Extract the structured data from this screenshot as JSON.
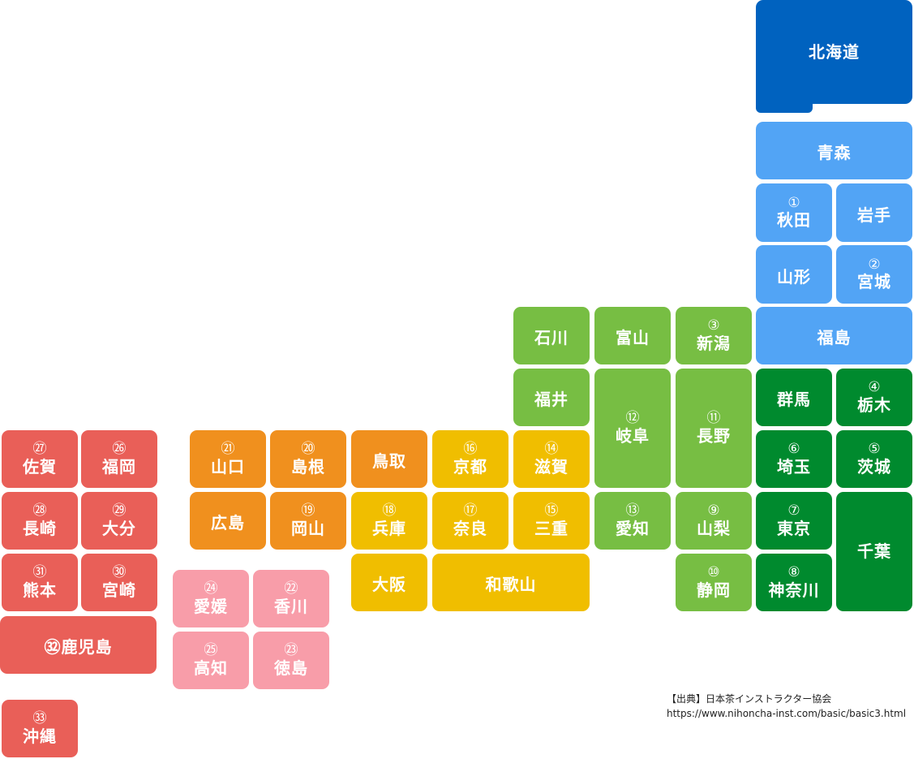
{
  "colors": {
    "hokkaido": "#0062BF",
    "tohoku": "#52A4F5",
    "kanto": "#008A2E",
    "chubu": "#77BE43",
    "kinki": "#F0BE00",
    "chugoku": "#F0901E",
    "shikoku": "#F89DA9",
    "kyushu": "#E95F58"
  },
  "prefectures": [
    {
      "id": "hokkaido",
      "name": "北海道",
      "num": "",
      "region": "hokkaido"
    },
    {
      "id": "aomori",
      "name": "青森",
      "num": "",
      "region": "tohoku"
    },
    {
      "id": "akita",
      "name": "秋田",
      "num": "①",
      "region": "tohoku"
    },
    {
      "id": "iwate",
      "name": "岩手",
      "num": "",
      "region": "tohoku"
    },
    {
      "id": "yamagata",
      "name": "山形",
      "num": "",
      "region": "tohoku"
    },
    {
      "id": "miyagi",
      "name": "宮城",
      "num": "②",
      "region": "tohoku"
    },
    {
      "id": "fukushima",
      "name": "福島",
      "num": "",
      "region": "tohoku"
    },
    {
      "id": "ishikawa",
      "name": "石川",
      "num": "",
      "region": "chubu"
    },
    {
      "id": "toyama",
      "name": "富山",
      "num": "",
      "region": "chubu"
    },
    {
      "id": "niigata",
      "name": "新潟",
      "num": "③",
      "region": "chubu"
    },
    {
      "id": "fukui",
      "name": "福井",
      "num": "",
      "region": "chubu"
    },
    {
      "id": "gifu",
      "name": "岐阜",
      "num": "⑫",
      "region": "chubu"
    },
    {
      "id": "nagano",
      "name": "長野",
      "num": "⑪",
      "region": "chubu"
    },
    {
      "id": "gunma",
      "name": "群馬",
      "num": "",
      "region": "kanto"
    },
    {
      "id": "tochigi",
      "name": "栃木",
      "num": "④",
      "region": "kanto"
    },
    {
      "id": "saitama",
      "name": "埼玉",
      "num": "⑥",
      "region": "kanto"
    },
    {
      "id": "ibaraki",
      "name": "茨城",
      "num": "⑤",
      "region": "kanto"
    },
    {
      "id": "tokyo",
      "name": "東京",
      "num": "⑦",
      "region": "kanto"
    },
    {
      "id": "chiba",
      "name": "千葉",
      "num": "",
      "region": "kanto"
    },
    {
      "id": "kanagawa",
      "name": "神奈川",
      "num": "⑧",
      "region": "kanto"
    },
    {
      "id": "aichi",
      "name": "愛知",
      "num": "⑬",
      "region": "chubu"
    },
    {
      "id": "yamanashi",
      "name": "山梨",
      "num": "⑨",
      "region": "chubu"
    },
    {
      "id": "shizuoka",
      "name": "静岡",
      "num": "⑩",
      "region": "chubu"
    },
    {
      "id": "shiga",
      "name": "滋賀",
      "num": "⑭",
      "region": "kinki"
    },
    {
      "id": "kyoto",
      "name": "京都",
      "num": "⑯",
      "region": "kinki"
    },
    {
      "id": "mie",
      "name": "三重",
      "num": "⑮",
      "region": "kinki"
    },
    {
      "id": "nara",
      "name": "奈良",
      "num": "⑰",
      "region": "kinki"
    },
    {
      "id": "hyogo",
      "name": "兵庫",
      "num": "⑱",
      "region": "kinki"
    },
    {
      "id": "osaka",
      "name": "大阪",
      "num": "",
      "region": "kinki"
    },
    {
      "id": "wakayama",
      "name": "和歌山",
      "num": "",
      "region": "kinki"
    },
    {
      "id": "tottori",
      "name": "鳥取",
      "num": "",
      "region": "chugoku"
    },
    {
      "id": "shimane",
      "name": "島根",
      "num": "⑳",
      "region": "chugoku"
    },
    {
      "id": "yamaguchi",
      "name": "山口",
      "num": "㉑",
      "region": "chugoku"
    },
    {
      "id": "hiroshima",
      "name": "広島",
      "num": "",
      "region": "chugoku"
    },
    {
      "id": "okayama",
      "name": "岡山",
      "num": "⑲",
      "region": "chugoku"
    },
    {
      "id": "ehime",
      "name": "愛媛",
      "num": "㉔",
      "region": "shikoku"
    },
    {
      "id": "kagawa",
      "name": "香川",
      "num": "㉒",
      "region": "shikoku"
    },
    {
      "id": "kochi",
      "name": "高知",
      "num": "㉕",
      "region": "shikoku"
    },
    {
      "id": "tokushima",
      "name": "徳島",
      "num": "㉓",
      "region": "shikoku"
    },
    {
      "id": "saga",
      "name": "佐賀",
      "num": "㉗",
      "region": "kyushu"
    },
    {
      "id": "fukuoka",
      "name": "福岡",
      "num": "㉖",
      "region": "kyushu"
    },
    {
      "id": "nagasaki",
      "name": "長崎",
      "num": "㉘",
      "region": "kyushu"
    },
    {
      "id": "oita",
      "name": "大分",
      "num": "㉙",
      "region": "kyushu"
    },
    {
      "id": "kumamoto",
      "name": "熊本",
      "num": "㉛",
      "region": "kyushu"
    },
    {
      "id": "miyazaki",
      "name": "宮崎",
      "num": "㉚",
      "region": "kyushu"
    },
    {
      "id": "kagoshima",
      "name": "㉜鹿児島",
      "num": "",
      "region": "kyushu"
    },
    {
      "id": "okinawa",
      "name": "沖縄",
      "num": "㉝",
      "region": "kyushu"
    }
  ],
  "source": {
    "line1": "【出典】日本茶インストラクター協会",
    "line2": "https://www.nihoncha-inst.com/basic/basic3.html"
  }
}
